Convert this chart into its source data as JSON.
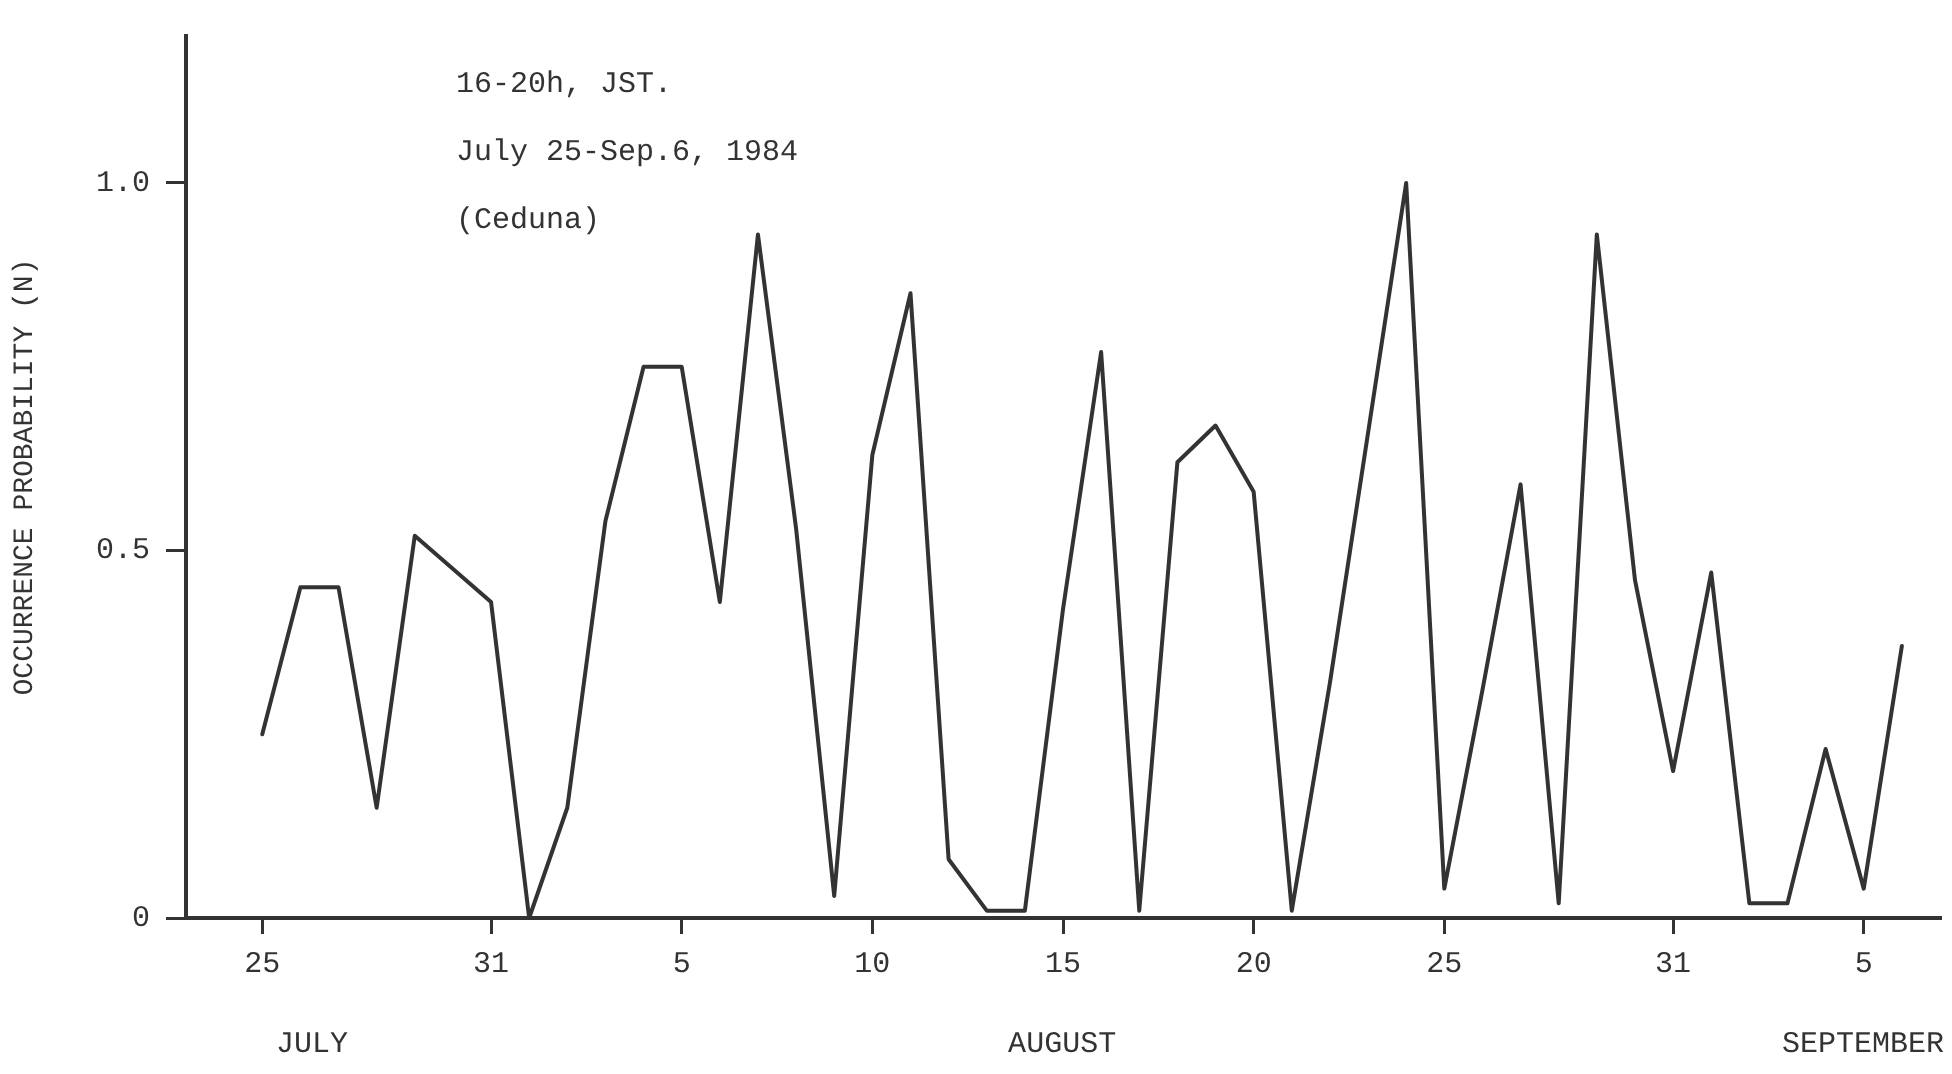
{
  "chart_data": {
    "type": "line",
    "ylabel": "OCCURRENCE PROBABILITY (N)",
    "annotations": [
      "16-20h, JST.",
      "July 25-Sep.6, 1984",
      "(Ceduna)",
      "JULY",
      "AUGUST",
      "SEPTEMBER"
    ],
    "x": [
      "1984-07-25",
      "1984-07-26",
      "1984-07-27",
      "1984-07-28",
      "1984-07-29",
      "1984-07-31",
      "1984-08-01",
      "1984-08-02",
      "1984-08-03",
      "1984-08-04",
      "1984-08-05",
      "1984-08-06",
      "1984-08-07",
      "1984-08-08",
      "1984-08-09",
      "1984-08-10",
      "1984-08-11",
      "1984-08-12",
      "1984-08-13",
      "1984-08-14",
      "1984-08-15",
      "1984-08-16",
      "1984-08-17",
      "1984-08-18",
      "1984-08-19",
      "1984-08-20",
      "1984-08-21",
      "1984-08-22",
      "1984-08-24",
      "1984-08-25",
      "1984-08-26",
      "1984-08-27",
      "1984-08-28",
      "1984-08-29",
      "1984-08-30",
      "1984-08-31",
      "1984-09-01",
      "1984-09-02",
      "1984-09-03",
      "1984-09-04",
      "1984-09-05",
      "1984-09-06"
    ],
    "series": [
      {
        "color": "#333333",
        "values": [
          0.25,
          0.45,
          0.45,
          0.15,
          0.52,
          0.43,
          0.0,
          0.15,
          0.54,
          0.75,
          0.75,
          0.43,
          0.93,
          0.53,
          0.03,
          0.63,
          0.85,
          0.08,
          0.01,
          0.01,
          0.42,
          0.77,
          0.01,
          0.62,
          0.67,
          0.58,
          0.01,
          0.32,
          1.0,
          0.04,
          0.31,
          0.59,
          0.02,
          0.93,
          0.46,
          0.2,
          0.47,
          0.02,
          0.02,
          0.23,
          0.04,
          0.37
        ]
      }
    ],
    "xlim": [
      "1984-07-23",
      "1984-09-07"
    ],
    "xticks": [
      {
        "value": "1984-07-25",
        "label": "25"
      },
      {
        "value": "1984-07-31",
        "label": "31"
      },
      {
        "value": "1984-08-05",
        "label": "5"
      },
      {
        "value": "1984-08-10",
        "label": "10"
      },
      {
        "value": "1984-08-15",
        "label": "15"
      },
      {
        "value": "1984-08-20",
        "label": "20"
      },
      {
        "value": "1984-08-25",
        "label": "25"
      },
      {
        "value": "1984-08-31",
        "label": "31"
      },
      {
        "value": "1984-09-05",
        "label": "5"
      }
    ],
    "ylim": [
      0,
      1.2
    ],
    "yticks": [
      0,
      {
        "value": 0.5,
        "label": "0.5"
      },
      {
        "value": 1.0,
        "label": "1.0"
      }
    ],
    "grid": false,
    "legend": false,
    "marker": "none",
    "line_style": "solid"
  }
}
